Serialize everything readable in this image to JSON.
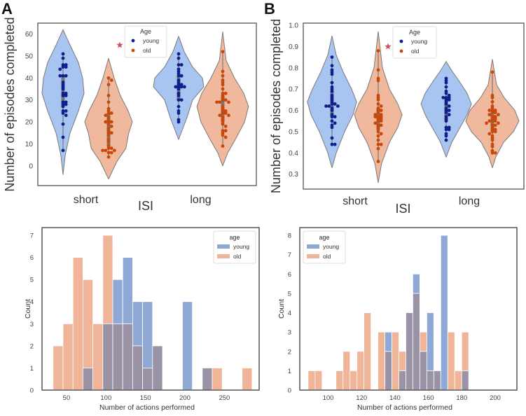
{
  "panels": {
    "A_label": "A",
    "B_label": "B"
  },
  "colors": {
    "young_fill": "#a8c4f0",
    "old_fill": "#f0b89c",
    "young_dot": "#0d1f8c",
    "old_dot": "#c8480a",
    "star": "#d0505a",
    "hist_young": "#8fa9d6",
    "hist_old": "#f0b499",
    "hist_overlap": "#9a93a6",
    "frame": "#555555"
  },
  "chart_data": [
    {
      "id": "A_violin",
      "type": "violin",
      "ylabel": "Number of episodes completed",
      "xlabel": "ISI",
      "categories": [
        "short",
        "long"
      ],
      "ylim": [
        -9,
        65
      ],
      "yticks": [
        0,
        10,
        20,
        30,
        40,
        50,
        60
      ],
      "legend": {
        "title": "Age",
        "entries": [
          "young",
          "old"
        ],
        "placement": "top-center"
      },
      "annotation": {
        "symbol": "star",
        "x_between": "short",
        "y": 55
      },
      "violins": [
        {
          "category": "short",
          "group": "young",
          "min": -4,
          "max": 62,
          "width_profile": [
            [
              -4,
              0
            ],
            [
              5,
              0.08
            ],
            [
              15,
              0.25
            ],
            [
              25,
              0.55
            ],
            [
              33,
              0.75
            ],
            [
              40,
              0.7
            ],
            [
              47,
              0.55
            ],
            [
              55,
              0.25
            ],
            [
              62,
              0
            ]
          ],
          "points": [
            51,
            49,
            46,
            46,
            45,
            45,
            44,
            41,
            41,
            41,
            38,
            37,
            36,
            35,
            33,
            33,
            32,
            32,
            29,
            29,
            28,
            28,
            27,
            25,
            25,
            24,
            23,
            19,
            13,
            7
          ]
        },
        {
          "category": "short",
          "group": "old",
          "min": -6,
          "max": 49,
          "width_profile": [
            [
              -6,
              0
            ],
            [
              2,
              0.3
            ],
            [
              8,
              0.62
            ],
            [
              15,
              0.72
            ],
            [
              20,
              0.85
            ],
            [
              25,
              0.7
            ],
            [
              32,
              0.42
            ],
            [
              40,
              0.2
            ],
            [
              49,
              0
            ]
          ],
          "points": [
            40,
            39,
            37,
            32,
            29,
            26,
            25,
            24,
            24,
            23,
            22,
            21,
            20,
            20,
            20,
            19,
            18,
            17,
            16,
            15,
            15,
            14,
            12,
            11,
            9,
            8,
            8,
            7,
            7,
            7,
            6,
            6,
            4
          ]
        },
        {
          "category": "long",
          "group": "young",
          "min": 12,
          "max": 59,
          "width_profile": [
            [
              12,
              0
            ],
            [
              17,
              0.15
            ],
            [
              22,
              0.3
            ],
            [
              30,
              0.5
            ],
            [
              36,
              0.9
            ],
            [
              40,
              0.85
            ],
            [
              45,
              0.5
            ],
            [
              52,
              0.2
            ],
            [
              59,
              0
            ]
          ],
          "points": [
            51,
            49,
            46,
            46,
            44,
            43,
            42,
            41,
            41,
            39,
            38,
            37,
            37,
            36,
            36,
            36,
            36,
            35,
            33,
            32,
            30,
            30,
            27,
            25,
            24,
            21,
            20
          ]
        },
        {
          "category": "long",
          "group": "old",
          "min": 0,
          "max": 61,
          "width_profile": [
            [
              0,
              0
            ],
            [
              6,
              0.18
            ],
            [
              12,
              0.45
            ],
            [
              20,
              0.78
            ],
            [
              27,
              0.92
            ],
            [
              33,
              0.75
            ],
            [
              40,
              0.42
            ],
            [
              48,
              0.12
            ],
            [
              61,
              0
            ]
          ],
          "points": [
            52,
            43,
            41,
            39,
            38,
            37,
            35,
            33,
            33,
            32,
            31,
            30,
            30,
            29,
            29,
            29,
            27,
            26,
            25,
            25,
            24,
            24,
            23,
            23,
            22,
            21,
            20,
            19,
            18,
            16,
            16,
            15,
            14,
            13,
            9
          ]
        }
      ]
    },
    {
      "id": "B_violin",
      "type": "violin",
      "ylabel": "Number of episodes completed",
      "xlabel": "ISI",
      "categories": [
        "short",
        "long"
      ],
      "ylim": [
        0.23,
        1.01
      ],
      "yticks": [
        0.3,
        0.4,
        0.5,
        0.6,
        0.7,
        0.8,
        0.9,
        1.0
      ],
      "legend": {
        "title": "Age",
        "entries": [
          "young",
          "old"
        ],
        "placement": "top-center"
      },
      "annotation": {
        "symbol": "star",
        "x_between": "short",
        "y": 0.9
      },
      "violins": [
        {
          "category": "short",
          "group": "young",
          "min": 0.33,
          "max": 0.95,
          "width_profile": [
            [
              0.33,
              0
            ],
            [
              0.4,
              0.15
            ],
            [
              0.5,
              0.45
            ],
            [
              0.58,
              0.75
            ],
            [
              0.64,
              0.88
            ],
            [
              0.7,
              0.7
            ],
            [
              0.78,
              0.4
            ],
            [
              0.86,
              0.15
            ],
            [
              0.95,
              0
            ]
          ],
          "points": [
            0.85,
            0.81,
            0.79,
            0.78,
            0.77,
            0.73,
            0.71,
            0.7,
            0.69,
            0.67,
            0.66,
            0.65,
            0.64,
            0.63,
            0.63,
            0.62,
            0.62,
            0.62,
            0.61,
            0.6,
            0.58,
            0.57,
            0.57,
            0.55,
            0.54,
            0.53,
            0.52,
            0.47,
            0.44,
            0.44
          ]
        },
        {
          "category": "short",
          "group": "old",
          "min": 0.26,
          "max": 0.97,
          "width_profile": [
            [
              0.26,
              0
            ],
            [
              0.35,
              0.12
            ],
            [
              0.45,
              0.4
            ],
            [
              0.52,
              0.7
            ],
            [
              0.58,
              0.85
            ],
            [
              0.63,
              0.7
            ],
            [
              0.7,
              0.4
            ],
            [
              0.8,
              0.15
            ],
            [
              0.97,
              0
            ]
          ],
          "points": [
            0.88,
            0.79,
            0.75,
            0.74,
            0.67,
            0.66,
            0.65,
            0.63,
            0.62,
            0.61,
            0.6,
            0.6,
            0.59,
            0.58,
            0.58,
            0.57,
            0.57,
            0.57,
            0.56,
            0.56,
            0.55,
            0.55,
            0.54,
            0.53,
            0.53,
            0.52,
            0.51,
            0.5,
            0.49,
            0.48,
            0.46,
            0.44,
            0.44,
            0.42,
            0.36
          ]
        },
        {
          "category": "long",
          "group": "young",
          "min": 0.38,
          "max": 0.83,
          "width_profile": [
            [
              0.38,
              0
            ],
            [
              0.45,
              0.2
            ],
            [
              0.52,
              0.5
            ],
            [
              0.58,
              0.75
            ],
            [
              0.63,
              0.9
            ],
            [
              0.68,
              0.75
            ],
            [
              0.74,
              0.45
            ],
            [
              0.79,
              0.18
            ],
            [
              0.83,
              0
            ]
          ],
          "points": [
            0.75,
            0.74,
            0.73,
            0.71,
            0.69,
            0.68,
            0.67,
            0.66,
            0.66,
            0.66,
            0.65,
            0.65,
            0.64,
            0.63,
            0.62,
            0.61,
            0.6,
            0.6,
            0.59,
            0.58,
            0.57,
            0.56,
            0.55,
            0.52,
            0.52,
            0.51,
            0.51,
            0.49,
            0.48,
            0.46
          ]
        },
        {
          "category": "long",
          "group": "old",
          "min": 0.33,
          "max": 0.84,
          "width_profile": [
            [
              0.33,
              0
            ],
            [
              0.38,
              0.12
            ],
            [
              0.45,
              0.4
            ],
            [
              0.5,
              0.75
            ],
            [
              0.55,
              0.95
            ],
            [
              0.6,
              0.8
            ],
            [
              0.66,
              0.42
            ],
            [
              0.72,
              0.15
            ],
            [
              0.84,
              0
            ]
          ],
          "points": [
            0.78,
            0.67,
            0.66,
            0.64,
            0.62,
            0.61,
            0.6,
            0.6,
            0.6,
            0.59,
            0.59,
            0.58,
            0.58,
            0.57,
            0.57,
            0.56,
            0.56,
            0.55,
            0.55,
            0.55,
            0.54,
            0.54,
            0.53,
            0.53,
            0.52,
            0.51,
            0.51,
            0.5,
            0.5,
            0.49,
            0.48,
            0.47,
            0.46,
            0.44,
            0.43,
            0.41,
            0.4,
            0.4
          ]
        }
      ]
    },
    {
      "id": "A_hist",
      "type": "bar",
      "subtype": "histogram-overlay",
      "xlabel": "Number of actions performed",
      "ylabel": "Count",
      "xlim": [
        19,
        294
      ],
      "ylim": [
        0,
        7.35
      ],
      "xticks": [
        50,
        100,
        150,
        200,
        250
      ],
      "yticks": [
        0,
        1,
        2,
        3,
        4,
        5,
        6,
        7
      ],
      "legend": {
        "title": "age",
        "entries": [
          "young",
          "old"
        ],
        "placement": "top-right"
      },
      "bin_start": 33,
      "bin_width": 12.6,
      "series": [
        {
          "name": "young",
          "values": [
            0,
            0,
            0,
            1,
            0,
            3,
            5,
            6,
            4,
            4,
            2,
            0,
            0,
            4,
            0,
            1,
            0,
            0,
            0,
            0
          ]
        },
        {
          "name": "old",
          "values": [
            2,
            3,
            6,
            5,
            3,
            7,
            3,
            3,
            2,
            1,
            2,
            0,
            0,
            0,
            0,
            1,
            1,
            0,
            0,
            1
          ]
        }
      ]
    },
    {
      "id": "B_hist",
      "type": "bar",
      "subtype": "histogram-overlay",
      "xlabel": "Number of actions performed",
      "ylabel": "Count",
      "xlim": [
        83,
        213
      ],
      "ylim": [
        0,
        8.4
      ],
      "xticks": [
        100,
        120,
        140,
        160,
        180,
        200
      ],
      "yticks": [
        0,
        1,
        2,
        3,
        4,
        5,
        6,
        7,
        8
      ],
      "legend": {
        "title": "age",
        "entries": [
          "young",
          "old"
        ],
        "placement": "top-left"
      },
      "bin_start": 88,
      "bin_width": 4.18,
      "series": [
        {
          "name": "young",
          "values": [
            0,
            0,
            0,
            0,
            0,
            0,
            0,
            0,
            0,
            0,
            0,
            3,
            0,
            1,
            4,
            6,
            2,
            4,
            1,
            8,
            0,
            0,
            1
          ]
        },
        {
          "name": "old",
          "values": [
            1,
            1,
            0,
            0,
            1,
            2,
            1,
            2,
            4,
            0,
            3,
            2,
            3,
            2,
            4,
            5,
            3,
            1,
            1,
            0,
            3,
            1,
            3
          ]
        }
      ]
    }
  ]
}
